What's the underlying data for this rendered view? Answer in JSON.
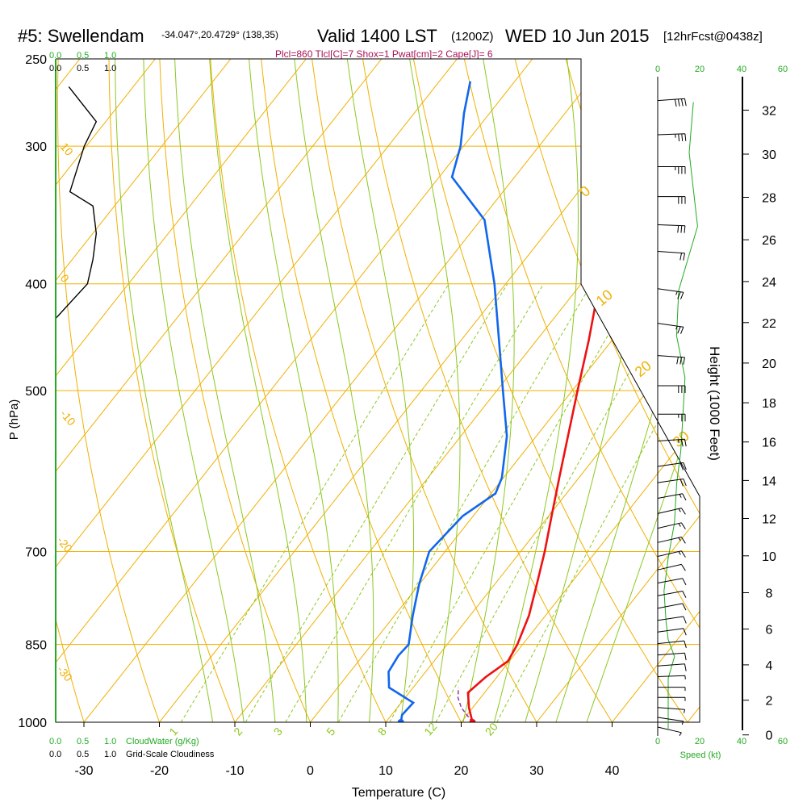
{
  "header": {
    "site": "#5: Swellendam",
    "coords": "-34.047°,20.4729° (138,35)",
    "valid": "Valid 1400 LST",
    "zulu": "(1200Z)",
    "date": "WED 10 Jun 2015",
    "fcst": "[12hrFcst@0438z]",
    "indices": "Plcl=860 Tlcl[C]=7 Shox=1 Pwat[cm]=2 Cape[J]= 6"
  },
  "colors": {
    "temperature": "#ee1111",
    "dewpoint": "#1166ee",
    "isotherm": "#f0b000",
    "dry_adiabat": "#f0b000",
    "moist_adiabat": "#8cc820",
    "mixing_ratio": "#8cc820",
    "cloud": "#22aa22",
    "indices": "#aa1155"
  },
  "chart_data": {
    "type": "line",
    "xlabel": "Temperature (C)",
    "ylabel": "P (hPa)",
    "right_axis_label": "Height (1000 Feet)",
    "xlim": [
      -34,
      36
    ],
    "ylim_hPa": [
      1000,
      250
    ],
    "x_ticks": [
      -30,
      -20,
      -10,
      0,
      10,
      20,
      30,
      40
    ],
    "pressure_ticks": [
      250,
      300,
      400,
      500,
      700,
      850,
      1000
    ],
    "height_ticks": [
      0,
      2,
      4,
      6,
      8,
      10,
      12,
      14,
      16,
      18,
      20,
      22,
      24,
      26,
      28,
      30,
      32
    ],
    "isotherm_labels": [
      "10",
      "0",
      "-10",
      "-20",
      "-30",
      "0",
      "10",
      "20",
      "30"
    ],
    "mixing_ratio_labels": [
      "1",
      "2",
      "3",
      "5",
      "8",
      "12",
      "20"
    ],
    "temperature": {
      "p": [
        1000,
        970,
        940,
        910,
        880,
        850,
        800,
        750,
        700,
        650,
        600,
        550,
        500,
        450,
        400,
        350,
        300,
        280,
        262
      ],
      "t": [
        21.5,
        19.5,
        17.8,
        18.5,
        19.8,
        19.3,
        17.8,
        15.6,
        13.2,
        10.4,
        7.4,
        4.2,
        0.7,
        -3.1,
        -7.6,
        -12.8,
        -18.7,
        -21.6,
        -22.5
      ]
    },
    "dewpoint": {
      "p": [
        1000,
        985,
        960,
        930,
        900,
        870,
        850,
        800,
        750,
        700,
        650,
        620,
        600,
        550,
        500,
        450,
        400,
        350,
        320,
        300,
        280,
        262
      ],
      "td": [
        12,
        11.4,
        11.6,
        6.8,
        5.1,
        4.7,
        4.9,
        2.4,
        0.0,
        -2.1,
        -1.4,
        0.6,
        -0.2,
        -3.9,
        -9.2,
        -15.0,
        -21.5,
        -29.5,
        -38.3,
        -40.4,
        -43.4,
        -45.9
      ]
    },
    "parcel": {
      "p": [
        1000,
        985,
        970,
        950,
        930
      ],
      "t": [
        21.5,
        20.0,
        18.5,
        17.0,
        16.0
      ]
    },
    "cloud_axis_top": {
      "cloud_water_ticks": [
        "0.0",
        "0.5",
        "1.0"
      ],
      "cloudiness_ticks": [
        "0.0",
        "0.5",
        "1.0"
      ]
    },
    "cloud_axis_bottom": {
      "cloud_water_ticks": [
        "0.0",
        "0.5",
        "1.0"
      ],
      "cloud_water_label": "CloudWater (g/Kg)",
      "cloudiness_ticks": [
        "0.0",
        "0.5",
        "1.0"
      ],
      "cloudiness_label": "Grid-Scale Cloudiness"
    },
    "cloudiness_profile": {
      "p": [
        265,
        285,
        300,
        330,
        340,
        360,
        380,
        400,
        430
      ],
      "frac": [
        0.12,
        0.37,
        0.26,
        0.13,
        0.34,
        0.37,
        0.34,
        0.29,
        0.0
      ]
    },
    "wind_speed_axis": {
      "label": "Speed (kt)",
      "ticks": [
        "0",
        "20",
        "40",
        "60"
      ]
    },
    "wind_speed": {
      "p": [
        1000,
        960,
        900,
        860,
        830,
        800,
        750,
        700,
        650,
        600,
        560,
        520,
        480,
        440,
        400,
        350,
        300,
        270
      ],
      "kt": [
        5,
        5,
        5,
        8,
        5,
        4,
        3,
        5,
        8,
        9,
        11,
        12,
        13,
        9,
        10,
        19,
        15,
        17
      ]
    },
    "wind_barbs": {
      "p": [
        1000,
        980,
        960,
        940,
        920,
        900,
        880,
        860,
        840,
        820,
        800,
        780,
        760,
        740,
        720,
        700,
        680,
        660,
        640,
        620,
        600,
        580,
        550,
        520,
        490,
        460,
        430,
        400,
        370,
        350,
        330,
        310,
        290,
        270
      ],
      "dir": [
        240,
        250,
        260,
        270,
        270,
        275,
        280,
        280,
        285,
        290,
        290,
        295,
        295,
        295,
        300,
        300,
        300,
        300,
        300,
        295,
        290,
        290,
        280,
        270,
        270,
        260,
        250,
        250,
        260,
        265,
        270,
        270,
        275,
        280
      ],
      "kt": [
        5,
        6,
        7,
        8,
        8,
        9,
        10,
        10,
        11,
        12,
        12,
        13,
        13,
        14,
        14,
        15,
        15,
        16,
        16,
        18,
        20,
        22,
        25,
        28,
        30,
        30,
        28,
        26,
        24,
        30,
        34,
        36,
        38,
        40
      ]
    }
  }
}
